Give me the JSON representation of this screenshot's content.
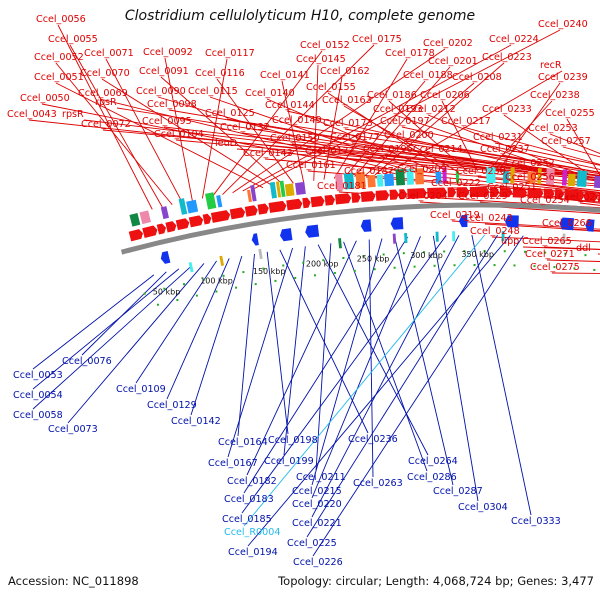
{
  "title": "Clostridium cellulolyticum H10, complete genome",
  "footer": {
    "accession": "Accession: NC_011898",
    "topology": "Topology: circular; Length: 4,068,724 bp; Genes: 3,477"
  },
  "colors": {
    "forward_arrows": "#ee1111",
    "reverse_arrows": "#1133ee",
    "forward_labels": "#dd0000",
    "reverse_labels": "#0011aa",
    "rna_label": "#22bbee",
    "backbone": "#888888",
    "minor_tick_dots": "#22aa22"
  },
  "scale_ticks": [
    "50 kbp",
    "100 kbp",
    "150 kbp",
    "200 kbp",
    "250 kbp",
    "300 kbp",
    "350 kbp"
  ],
  "forward_labels": [
    "Ccel_0056",
    "Ccel_0055",
    "Ccel_0052",
    "Ccel_0071",
    "Ccel_0092",
    "Ccel_0117",
    "Ccel_0152",
    "Ccel_0175",
    "Ccel_0202",
    "Ccel_0224",
    "Ccel_0240",
    "Ccel_0051",
    "Ccel_0070",
    "Ccel_0091",
    "Ccel_0116",
    "Ccel_0141",
    "Ccel_0145",
    "Ccel_0162",
    "Ccel_0178",
    "Ccel_0188",
    "Ccel_0201",
    "Ccel_0208",
    "Ccel_0223",
    "recR",
    "Ccel_0050",
    "Ccel_0069",
    "Ccel_0090",
    "Ccel_0115",
    "Ccel_0140",
    "Ccel_0155",
    "Ccel_0163",
    "Ccel_0186",
    "Ccel_0206",
    "Ccel_0238",
    "Ccel_0239",
    "Ccel_0043",
    "rpsR",
    "rpsR",
    "Ccel_0098",
    "Ccel_0125",
    "Ccel_0144",
    "Ccel_0193",
    "Ccel_0212",
    "Ccel_0233",
    "Ccel_0255",
    "Ccel_0072",
    "Ccel_0095",
    "Ccel_0132",
    "Ccel_0149",
    "Ccel_0173",
    "Ccel_0197",
    "Ccel_0217",
    "Ccel_0253",
    "Ccel_0104",
    "leuD",
    "Ccel_0150",
    "Ccel_0177",
    "Ccel_0200",
    "Ccel_0231",
    "Ccel_0257",
    "Ccel_0143",
    "Ccel_0172",
    "Ccel_0196",
    "Ccel_0214",
    "Ccel_0237",
    "Ccel_0161",
    "Ccel_0187",
    "Ccel_0209",
    "Ccel_0230",
    "Ccel_0252",
    "Ccel_0181",
    "Ccel_0222",
    "Ccel_0256",
    "Ccel_0204",
    "Ccel_0229",
    "Ccel_0251",
    "Ccel_0254",
    "Ccel_0267",
    "Ccel_0219",
    "Ccel_0243",
    "Ccel_0266",
    "Ccel_0248",
    "upp",
    "Ccel_0265",
    "ddl",
    "Ccel_0271",
    "Ccel_0275"
  ],
  "reverse_labels": [
    "Ccel_0053",
    "Ccel_0076",
    "Ccel_0054",
    "Ccel_0058",
    "Ccel_0073",
    "Ccel_0109",
    "Ccel_0129",
    "Ccel_0142",
    "Ccel_0164",
    "Ccel_0198",
    "Ccel_0236",
    "Ccel_0167",
    "Ccel_0199",
    "Ccel_0264",
    "Ccel_0211",
    "Ccel_0286",
    "Ccel_0182",
    "Ccel_0263",
    "Ccel_0215",
    "Ccel_0287",
    "Ccel_0183",
    "Ccel_0220",
    "Ccel_0304",
    "Ccel_0185",
    "Ccel_0221",
    "Ccel_0333",
    "Ccel_R0004",
    "Ccel_0225",
    "Ccel_0194",
    "Ccel_0226"
  ]
}
